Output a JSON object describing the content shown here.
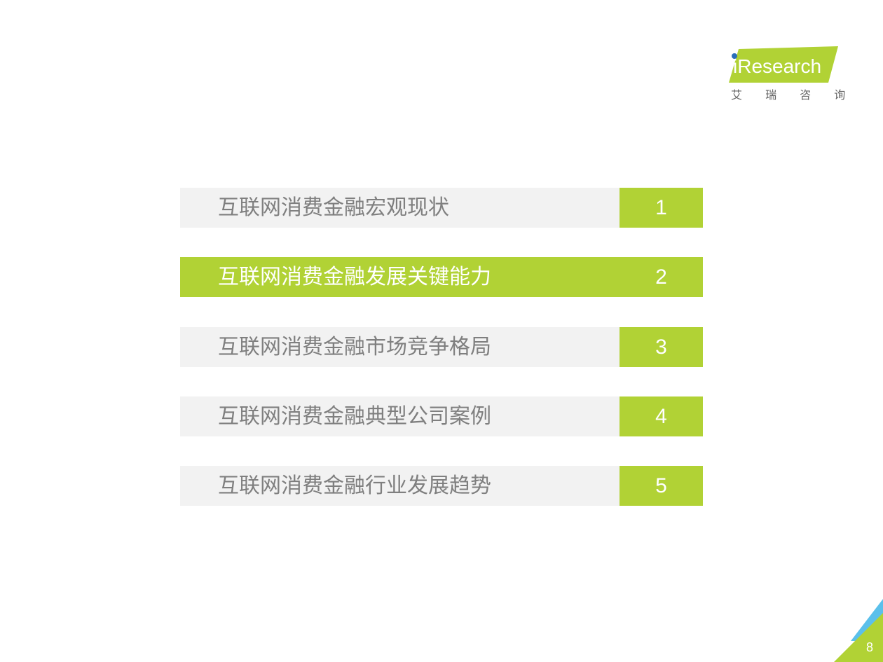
{
  "logo": {
    "brand": "iResearch",
    "tagline": "艾 瑞 咨 询"
  },
  "agenda": [
    {
      "title": "互联网消费金融宏观现状",
      "number": 1,
      "highlighted": false
    },
    {
      "title": "互联网消费金融发展关键能力",
      "number": 2,
      "highlighted": true
    },
    {
      "title": "互联网消费金融市场竞争格局",
      "number": 3,
      "highlighted": false
    },
    {
      "title": "互联网消费金融典型公司案例",
      "number": 4,
      "highlighted": false
    },
    {
      "title": "互联网消费金融行业发展趋势",
      "number": 5,
      "highlighted": false
    }
  ],
  "page_number": 8
}
